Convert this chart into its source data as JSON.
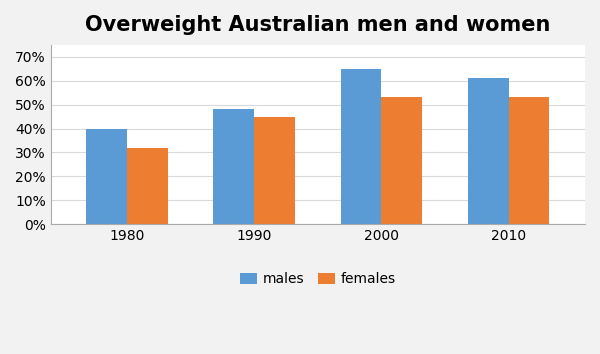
{
  "title": "Overweight Australian men and women",
  "years": [
    "1980",
    "1990",
    "2000",
    "2010"
  ],
  "males": [
    0.4,
    0.48,
    0.65,
    0.61
  ],
  "females": [
    0.32,
    0.45,
    0.53,
    0.53
  ],
  "male_color": "#5B9BD5",
  "female_color": "#ED7D31",
  "ylim": [
    0,
    0.75
  ],
  "yticks": [
    0.0,
    0.1,
    0.2,
    0.3,
    0.4,
    0.5,
    0.6,
    0.7
  ],
  "legend_labels": [
    "males",
    "females"
  ],
  "bar_width": 0.32,
  "figure_facecolor": "#F2F2F2",
  "plot_facecolor": "#FFFFFF",
  "title_fontsize": 15,
  "tick_fontsize": 10,
  "legend_fontsize": 10,
  "grid_color": "#D9D9D9",
  "spine_color": "#AAAAAA"
}
